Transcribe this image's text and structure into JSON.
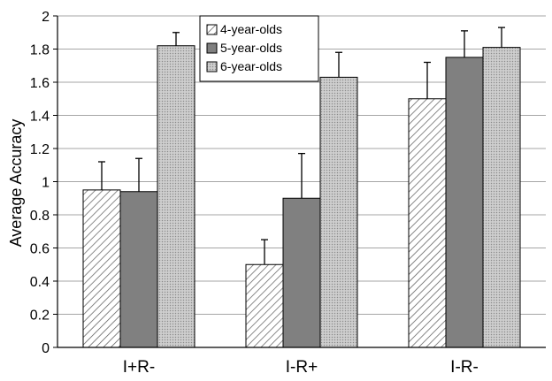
{
  "chart_data": {
    "type": "bar",
    "title": "",
    "xlabel": "",
    "ylabel": "Average Accuracy",
    "ylim": [
      0,
      2
    ],
    "yticks": [
      "0",
      "0.2",
      "0.4",
      "0.6",
      "0.8",
      "1",
      "1.2",
      "1.4",
      "1.6",
      "1.8",
      "2"
    ],
    "categories": [
      "I+R-",
      "I-R+",
      "I-R-"
    ],
    "grid": true,
    "legend_position": "top-center",
    "series": [
      {
        "name": "4-year-olds",
        "values": [
          0.95,
          0.5,
          1.5
        ],
        "errors": [
          0.17,
          0.15,
          0.22
        ],
        "pattern": "diagonal-hatch",
        "color": "#ffffff"
      },
      {
        "name": "5-year-olds",
        "values": [
          0.94,
          0.9,
          1.75
        ],
        "errors": [
          0.2,
          0.27,
          0.16
        ],
        "pattern": "solid",
        "color": "#808080"
      },
      {
        "name": "6-year-olds",
        "values": [
          1.82,
          1.63,
          1.81
        ],
        "errors": [
          0.08,
          0.15,
          0.12
        ],
        "pattern": "fine-dots",
        "color": "#c8c8c8"
      }
    ]
  }
}
